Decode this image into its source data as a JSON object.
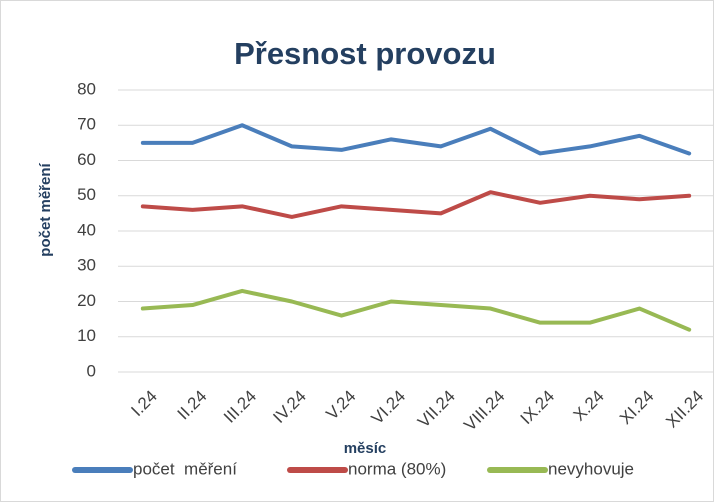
{
  "chart_data": {
    "type": "line",
    "title": "Přesnost provozu",
    "x_label": "měsíc",
    "y_label": "počet měření",
    "categories": [
      "I.24",
      "II.24",
      "III.24",
      "IV.24",
      "V.24",
      "VI.24",
      "VII.24",
      "VIII.24",
      "IX.24",
      "X.24",
      "XI.24",
      "XII.24"
    ],
    "series": [
      {
        "name": "počet  měření",
        "color": "#4a7ebb",
        "values": [
          65,
          65,
          70,
          64,
          63,
          66,
          64,
          69,
          62,
          64,
          67,
          62
        ]
      },
      {
        "name": "norma (80%)",
        "color": "#be4b48",
        "values": [
          47,
          46,
          47,
          44,
          47,
          46,
          45,
          51,
          48,
          50,
          49,
          50
        ]
      },
      {
        "name": "nevyhovuje",
        "color": "#98b954",
        "values": [
          18,
          19,
          23,
          20,
          16,
          20,
          19,
          18,
          14,
          14,
          18,
          12
        ]
      }
    ],
    "ylim": [
      0,
      80
    ],
    "yticks": [
      0,
      10,
      20,
      30,
      40,
      50,
      60,
      70,
      80
    ],
    "grid": true,
    "legend": "bottom"
  }
}
